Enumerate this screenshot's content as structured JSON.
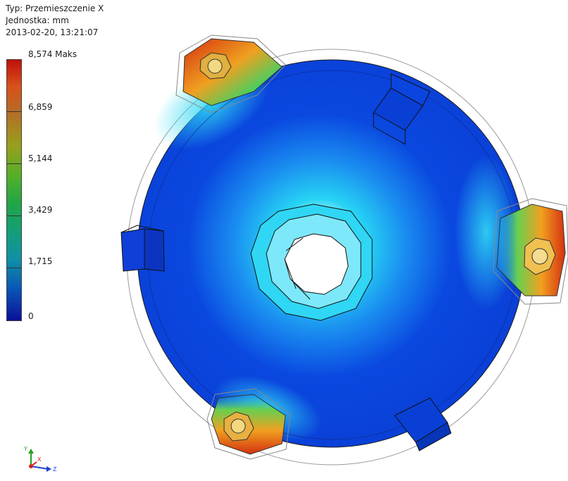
{
  "result": {
    "type_label": "Typ: Przemieszczenie X",
    "unit_label": "Jednostka: mm",
    "timestamp": "2013-02-20, 13:21:07"
  },
  "legend": {
    "max_label": "8,574 Maks",
    "ticks": [
      "6,859",
      "5,144",
      "3,429",
      "1,715",
      "0"
    ],
    "colors": [
      "#c0100c",
      "#d8501a",
      "#b66c27",
      "#98a01c",
      "#52b02a",
      "#21a646",
      "#129e7d",
      "#0f8fa8",
      "#0a55b6",
      "#0a109b"
    ]
  },
  "view_cube": {
    "axes": [
      "Y",
      "X",
      "Z"
    ],
    "colors": {
      "y": "#22a020",
      "x": "#d02020",
      "z": "#2040d0"
    }
  },
  "model": {
    "icon": "fea-displacement-plot",
    "max_color": "#d42a10",
    "min_color": "#0a3fd6",
    "mid_color": "#22c8f0"
  }
}
